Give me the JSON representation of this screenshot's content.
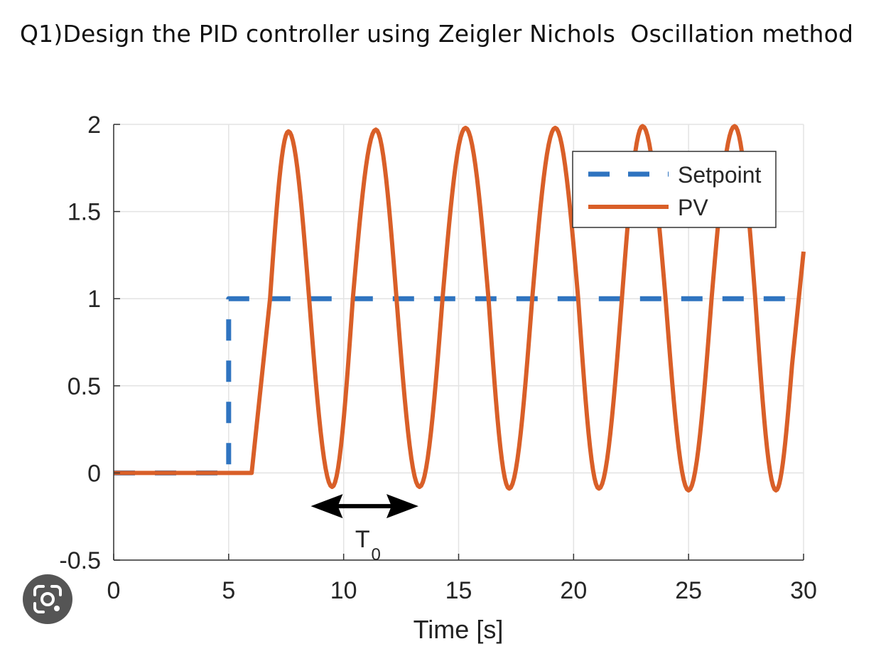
{
  "question": {
    "text": "Q1)Design the PID controller using Zeigler Nichols  Oscillation method"
  },
  "chart_data": {
    "type": "line",
    "title": "",
    "xlabel": "Time [s]",
    "ylabel": "",
    "xlim": [
      0,
      30
    ],
    "ylim": [
      -0.5,
      2
    ],
    "xticks": [
      0,
      5,
      10,
      15,
      20,
      25,
      30
    ],
    "xtick_labels": [
      "0",
      "5",
      "10",
      "15",
      "20",
      "25",
      "30"
    ],
    "yticks": [
      -0.5,
      0,
      0.5,
      1,
      1.5,
      2
    ],
    "ytick_labels": [
      "-0.5",
      "0",
      "0.5",
      "1",
      "1.5",
      "2"
    ],
    "grid": true,
    "legend_position": "top-right",
    "series": [
      {
        "name": "Setpoint",
        "style": "dashed",
        "color": "#2f74c0",
        "x": [
          0,
          5,
          5,
          30
        ],
        "y": [
          0,
          0,
          1,
          1
        ]
      },
      {
        "name": "PV",
        "style": "solid",
        "color": "#d95f28",
        "x": [
          0,
          6,
          6.8,
          7.6,
          8.5,
          9.5,
          10.4,
          11.4,
          12.3,
          13.3,
          14.3,
          15.3,
          16.3,
          17.2,
          18.2,
          19.2,
          20.2,
          21.1,
          22.1,
          23.0,
          24.0,
          25.0,
          26.0,
          27.0,
          27.9,
          28.8,
          29.5,
          30.0
        ],
        "y": [
          0,
          0,
          1.0,
          1.96,
          1.0,
          -0.08,
          1.0,
          1.97,
          1.0,
          -0.08,
          1.0,
          1.98,
          1.0,
          -0.09,
          1.0,
          1.98,
          1.0,
          -0.09,
          1.0,
          1.99,
          1.0,
          -0.1,
          1.0,
          1.99,
          1.0,
          -0.1,
          0.62,
          1.27
        ]
      }
    ],
    "annotations": [
      {
        "type": "double-arrow",
        "label": "T",
        "subscript": "0",
        "x_start": 9.5,
        "x_end": 13.5,
        "y": -0.15
      }
    ]
  },
  "overlay": {
    "lens_button_icon": "google-lens-icon"
  }
}
